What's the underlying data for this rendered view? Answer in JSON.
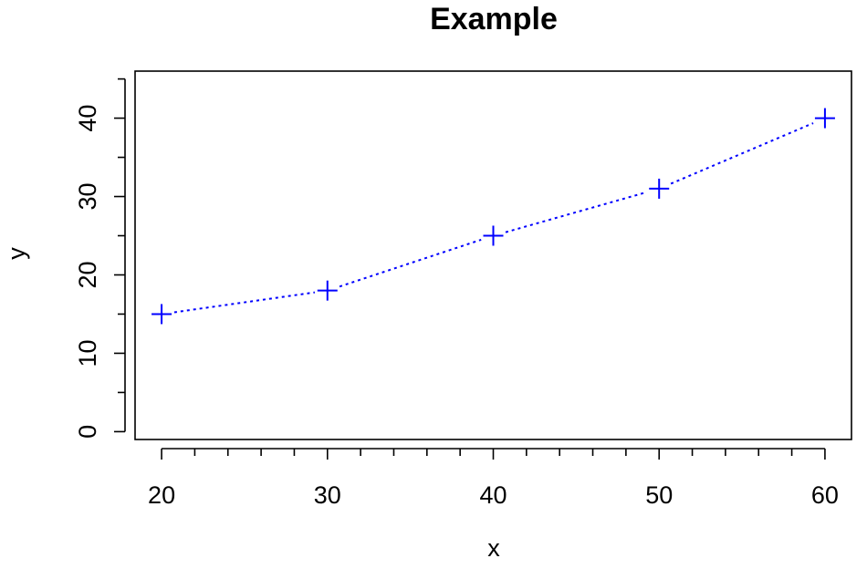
{
  "chart_data": {
    "type": "line",
    "title": "Example",
    "xlabel": "x",
    "ylabel": "y",
    "x": [
      20,
      30,
      40,
      50,
      60
    ],
    "series": [
      {
        "values": [
          15,
          18,
          25,
          31,
          40
        ],
        "color": "#0000ff",
        "line_style": "dotted",
        "marker": "plus"
      }
    ],
    "xlim": [
      18.4,
      61.6
    ],
    "ylim": [
      -1,
      46
    ],
    "x_ticks": [
      20,
      30,
      40,
      50,
      60
    ],
    "x_tick_labels": [
      "20",
      "30",
      "40",
      "50",
      "60"
    ],
    "x_minor_ticks": [
      22,
      24,
      26,
      28,
      32,
      34,
      36,
      38,
      42,
      44,
      46,
      48,
      52,
      54,
      56,
      58
    ],
    "y_ticks": [
      0,
      10,
      20,
      30,
      40
    ],
    "y_tick_labels": [
      "0",
      "10",
      "20",
      "30",
      "40"
    ],
    "y_minor_ticks": [
      5,
      15,
      25,
      35,
      45
    ],
    "grid": false,
    "legend": "none",
    "frame_color": "#000000",
    "background_color": "#ffffff"
  }
}
